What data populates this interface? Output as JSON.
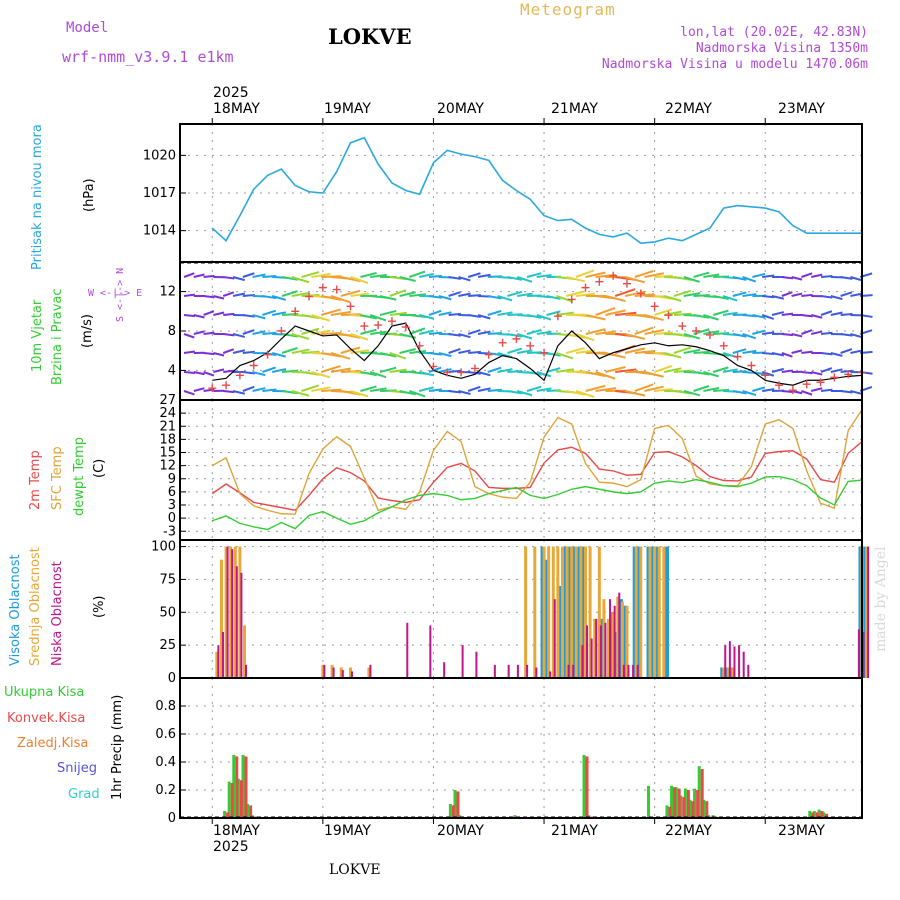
{
  "header": {
    "model_label": "Model",
    "model_name": "wrf-nmm_v3.9.1 e1km",
    "station": "LOKVE",
    "meteogram_label": "Meteogram",
    "lonlat": "lon,lat (20.02E, 42.83N)",
    "altitude": "Nadmorska Visina 1350m",
    "model_altitude": "Nadmorska Visina u modelu 1470.06m"
  },
  "footer": {
    "station": "LOKVE",
    "watermark": "made by Angel"
  },
  "dates": {
    "year": "2025",
    "labels": [
      "18MAY",
      "19MAY",
      "20MAY",
      "21MAY",
      "22MAY",
      "23MAY"
    ]
  },
  "panels": {
    "pressure": {
      "title": "Pritisak na nivou mora",
      "unit": "(hPa)"
    },
    "wind": {
      "title1": "10m Vjetar",
      "title2": "Brzina i Pravac",
      "unit": "(m/s)",
      "compass": "W <-|-> E",
      "compass_vert": "S <-|-> N"
    },
    "temp": {
      "t2m": "2m Temp",
      "sfc": "SFC Temp",
      "dew": "dewpt Temp",
      "unit": "(C)"
    },
    "cloud": {
      "high": "Visoka Oblacnost",
      "mid": "Srednja Oblacnost",
      "low": "Niska Oblacnost",
      "unit": "(%)"
    },
    "precip": {
      "total": "Ukupna Kisa",
      "conv": "Konvek.Kisa",
      "frz": "Zaledj.Kisa",
      "snow": "Snijeg",
      "hail": "Grad",
      "unit": "1hr Precip (mm)"
    }
  },
  "colors": {
    "pressure": "#2aa8e0",
    "t2m": "#e84a4a",
    "sfc": "#dfa43a",
    "dew": "#33cc33",
    "high": "#1e9be0",
    "mid": "#e8a838",
    "low": "#c0148c",
    "total": "#33cc33",
    "conv": "#e84a4a",
    "frz": "#f08030",
    "snow": "#5555dd",
    "hail": "#33cccc",
    "wind_line": "#000000",
    "gust": "#e84a4a"
  },
  "chart_data": [
    {
      "type": "line",
      "name": "pressure",
      "ylabel": "(hPa)",
      "ylim": [
        1011.5,
        1022.5
      ],
      "yticks": [
        1014,
        1017,
        1020
      ],
      "x_hours": [
        0,
        3,
        6,
        9,
        12,
        15,
        18,
        21,
        24,
        27,
        30,
        33,
        36,
        39,
        42,
        45,
        48,
        51,
        54,
        57,
        60,
        63,
        66,
        69,
        72,
        75,
        78,
        81,
        84,
        87,
        90,
        93,
        96,
        99,
        102,
        105,
        108,
        111,
        114,
        117,
        120,
        123,
        126,
        129,
        132,
        135,
        138,
        141
      ],
      "values": [
        1014.2,
        1013.2,
        1015.2,
        1017.3,
        1018.4,
        1018.9,
        1017.6,
        1017.1,
        1017.0,
        1018.7,
        1021.0,
        1021.4,
        1019.3,
        1017.8,
        1017.2,
        1016.9,
        1019.4,
        1020.4,
        1020.1,
        1019.9,
        1019.6,
        1018.0,
        1017.2,
        1016.5,
        1015.2,
        1014.8,
        1014.9,
        1014.2,
        1013.7,
        1013.5,
        1013.8,
        1013.0,
        1013.1,
        1013.4,
        1013.2,
        1013.7,
        1014.2,
        1015.8,
        1016.0,
        1015.9,
        1015.8,
        1015.5,
        1014.4,
        1013.8,
        1013.8,
        1013.8,
        1013.8,
        1013.8
      ]
    },
    {
      "type": "line",
      "name": "wind",
      "ylabel": "(m/s)",
      "ylim": [
        1,
        15
      ],
      "yticks": [
        4,
        8,
        12
      ],
      "x_hours": [
        0,
        3,
        6,
        9,
        12,
        15,
        18,
        21,
        24,
        27,
        30,
        33,
        36,
        39,
        42,
        45,
        48,
        51,
        54,
        57,
        60,
        63,
        66,
        69,
        72,
        75,
        78,
        81,
        84,
        87,
        90,
        93,
        96,
        99,
        102,
        105,
        108,
        111,
        114,
        117,
        120,
        123,
        126,
        129,
        132,
        135,
        138,
        141
      ],
      "series": [
        {
          "name": "speed",
          "values": [
            3.0,
            3.2,
            4.5,
            5.0,
            5.8,
            7.2,
            8.5,
            8.0,
            7.5,
            7.6,
            6.2,
            5.0,
            6.5,
            8.5,
            8.8,
            6.0,
            4.0,
            3.5,
            3.2,
            3.6,
            4.8,
            5.5,
            5.2,
            4.2,
            3.0,
            6.5,
            8.0,
            6.8,
            5.2,
            5.8,
            6.2,
            6.6,
            6.8,
            6.5,
            6.6,
            6.4,
            6.0,
            5.5,
            4.5,
            4.0,
            3.0,
            2.7,
            2.5,
            3.0,
            3.0,
            3.2,
            3.4,
            3.5
          ]
        },
        {
          "name": "gust",
          "values": [
            2.2,
            2.5,
            3.5,
            4.5,
            5.6,
            8.0,
            10.0,
            11.5,
            12.4,
            12.2,
            10.5,
            8.5,
            8.6,
            9.0,
            8.4,
            6.5,
            4.4,
            3.8,
            3.8,
            4.2,
            5.6,
            6.8,
            7.2,
            6.5,
            5.8,
            9.5,
            11.2,
            12.4,
            13.0,
            13.6,
            12.8,
            11.8,
            10.5,
            9.6,
            8.5,
            8.0,
            7.6,
            6.5,
            5.4,
            4.5,
            3.5,
            2.5,
            2.0,
            2.6,
            2.8,
            3.3,
            3.6,
            3.8
          ]
        }
      ]
    },
    {
      "type": "line",
      "name": "temperature",
      "ylabel": "(C)",
      "ylim": [
        -5,
        27
      ],
      "yticks": [
        -3,
        0,
        3,
        6,
        9,
        12,
        15,
        18,
        21,
        24,
        27
      ],
      "x_hours": [
        0,
        3,
        6,
        9,
        12,
        15,
        18,
        21,
        24,
        27,
        30,
        33,
        36,
        39,
        42,
        45,
        48,
        51,
        54,
        57,
        60,
        63,
        66,
        69,
        72,
        75,
        78,
        81,
        84,
        87,
        90,
        93,
        96,
        99,
        102,
        105,
        108,
        111,
        114,
        117,
        120,
        123,
        126,
        129,
        132,
        135,
        138,
        141
      ],
      "series": [
        {
          "name": "2m Temp",
          "values": [
            5.6,
            7.8,
            5.8,
            3.6,
            3.0,
            2.4,
            1.8,
            5.2,
            9.0,
            11.5,
            10.4,
            8.5,
            4.6,
            4.0,
            3.6,
            4.2,
            8.2,
            11.6,
            12.5,
            10.8,
            7.0,
            6.8,
            6.8,
            7.0,
            12.6,
            15.6,
            16.2,
            14.8,
            11.2,
            10.8,
            9.8,
            10.0,
            15.0,
            15.2,
            14.0,
            12.0,
            9.5,
            8.6,
            8.5,
            9.4,
            14.8,
            15.2,
            15.4,
            13.5,
            8.8,
            8.2,
            14.8,
            17.5
          ]
        },
        {
          "name": "SFC Temp",
          "values": [
            12.0,
            13.8,
            5.6,
            2.8,
            1.8,
            1.0,
            0.9,
            10.2,
            15.8,
            18.6,
            16.4,
            9.2,
            1.8,
            2.6,
            2.0,
            6.0,
            15.5,
            19.8,
            17.5,
            7.2,
            5.6,
            4.8,
            4.5,
            8.2,
            18.5,
            23.0,
            21.5,
            12.5,
            8.2,
            8.0,
            7.2,
            8.8,
            20.5,
            21.2,
            18.2,
            9.6,
            7.8,
            7.4,
            7.4,
            11.8,
            21.5,
            22.5,
            20.5,
            10.8,
            3.4,
            2.3,
            20.0,
            24.8
          ]
        },
        {
          "name": "dewpt Temp",
          "values": [
            -0.6,
            0.5,
            -1.2,
            -2.0,
            -2.6,
            -1.0,
            -2.4,
            0.6,
            1.5,
            0.0,
            -1.4,
            -0.6,
            1.2,
            2.6,
            4.2,
            5.2,
            5.6,
            5.2,
            4.2,
            4.5,
            5.6,
            6.3,
            7.0,
            5.2,
            4.5,
            5.4,
            6.6,
            7.2,
            6.6,
            6.0,
            5.6,
            6.0,
            8.0,
            8.5,
            8.1,
            8.8,
            8.2,
            7.4,
            7.2,
            8.0,
            9.4,
            9.5,
            8.8,
            7.4,
            4.6,
            3.0,
            8.4,
            8.7
          ]
        }
      ]
    },
    {
      "type": "bar",
      "name": "cloud",
      "ylabel": "(%)",
      "ylim": [
        0,
        105
      ],
      "yticks": [
        0,
        25,
        50,
        75,
        100
      ],
      "x_hours": [
        1,
        2,
        3,
        4,
        5,
        6,
        7,
        24,
        26,
        28,
        30,
        34,
        42,
        47,
        50,
        54,
        57,
        61,
        64,
        66,
        68,
        70,
        72,
        73,
        74,
        75,
        76,
        77,
        78,
        79,
        80,
        81,
        82,
        83,
        84,
        85,
        86,
        87,
        88,
        89,
        90,
        91,
        92,
        93,
        94,
        95,
        96,
        97,
        98,
        99,
        100,
        101,
        102,
        103,
        104,
        105,
        106,
        107,
        108,
        109,
        110,
        111,
        112,
        113,
        114,
        115,
        116,
        117,
        118,
        119,
        140,
        141,
        142
      ],
      "series": [
        {
          "name": "Visoka Oblacnost",
          "values": [
            0,
            0,
            0,
            0,
            0,
            0,
            0,
            0,
            0,
            0,
            0,
            0,
            0,
            0,
            0,
            0,
            0,
            0,
            0,
            0,
            0,
            0,
            100,
            90,
            0,
            0,
            70,
            100,
            100,
            100,
            100,
            100,
            0,
            0,
            0,
            45,
            0,
            50,
            35,
            60,
            55,
            0,
            100,
            100,
            0,
            100,
            100,
            100,
            0,
            100,
            0,
            0,
            0,
            0,
            0,
            0,
            0,
            0,
            0,
            0,
            0,
            8,
            8,
            8,
            0,
            0,
            0,
            0,
            0,
            0,
            0,
            100,
            100
          ]
        },
        {
          "name": "Srednja Oblacnost",
          "values": [
            20,
            90,
            100,
            100,
            100,
            100,
            40,
            10,
            10,
            8,
            8,
            8,
            0,
            0,
            0,
            0,
            0,
            0,
            0,
            0,
            100,
            100,
            100,
            100,
            100,
            100,
            100,
            100,
            100,
            100,
            100,
            100,
            100,
            45,
            100,
            60,
            45,
            50,
            62,
            58,
            55,
            0,
            100,
            100,
            0,
            100,
            100,
            100,
            100,
            0,
            0,
            0,
            0,
            0,
            0,
            0,
            0,
            0,
            0,
            0,
            0,
            8,
            8,
            8,
            0,
            0,
            0,
            0,
            0,
            0,
            0,
            100,
            100
          ]
        },
        {
          "name": "Niska Oblacnost",
          "values": [
            25,
            35,
            100,
            98,
            85,
            80,
            10,
            10,
            8,
            6,
            5,
            10,
            42,
            40,
            12,
            25,
            20,
            10,
            10,
            10,
            10,
            8,
            0,
            5,
            60,
            0,
            0,
            10,
            10,
            0,
            25,
            40,
            30,
            45,
            40,
            42,
            60,
            55,
            65,
            10,
            10,
            10,
            10,
            0,
            0,
            0,
            0,
            0,
            0,
            0,
            0,
            0,
            0,
            0,
            0,
            0,
            0,
            0,
            0,
            0,
            0,
            25,
            28,
            24,
            25,
            20,
            10,
            0,
            0,
            0,
            37,
            35,
            100
          ]
        }
      ]
    },
    {
      "type": "bar",
      "name": "precipitation",
      "ylabel": "1hr Precip (mm)",
      "ylim": [
        0,
        1.0
      ],
      "yticks": [
        0,
        0.2,
        0.4,
        0.6,
        0.8
      ],
      "x_hours": [
        3,
        4,
        5,
        6,
        7,
        8,
        9,
        10,
        52,
        53,
        54,
        66,
        81,
        82,
        95,
        99,
        100,
        101,
        102,
        103,
        104,
        105,
        106,
        107,
        108,
        109,
        130,
        131,
        132,
        133
      ],
      "series": [
        {
          "name": "Ukupna Kisa",
          "values": [
            0.05,
            0.26,
            0.45,
            0.28,
            0.45,
            0.1,
            0.02,
            0.01,
            0.1,
            0.2,
            0.02,
            0.02,
            0.45,
            0.02,
            0.23,
            0.09,
            0.23,
            0.22,
            0.16,
            0.21,
            0.13,
            0.21,
            0.37,
            0.13,
            0.02,
            0.02,
            0.05,
            0.05,
            0.06,
            0.04
          ]
        },
        {
          "name": "Konvek.Kisa",
          "values": [
            0.04,
            0.25,
            0.44,
            0.27,
            0.44,
            0.09,
            0.01,
            0.0,
            0.09,
            0.19,
            0.01,
            0.01,
            0.44,
            0.01,
            0.0,
            0.08,
            0.22,
            0.21,
            0.15,
            0.2,
            0.12,
            0.2,
            0.35,
            0.12,
            0.01,
            0.01,
            0.04,
            0.04,
            0.05,
            0.03
          ]
        }
      ]
    }
  ]
}
